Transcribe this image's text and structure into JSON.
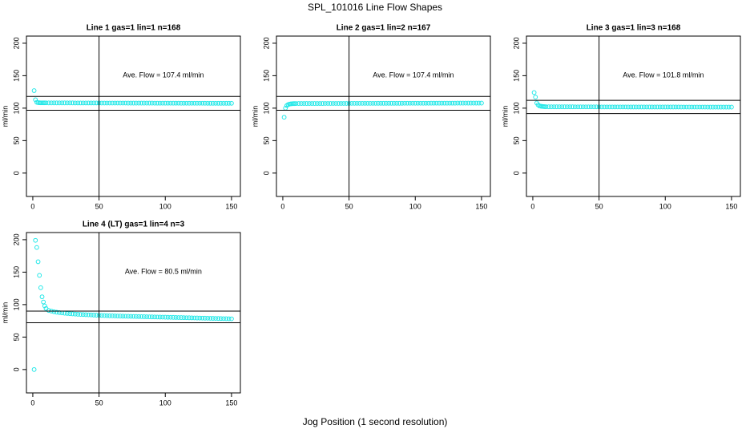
{
  "title": "SPL_101016  Line Flow Shapes",
  "xlabel": "Jog Position (1 second resolution)",
  "chart_data": [
    {
      "type": "scatter",
      "title": "Line 1 gas=1 lin=1 n=168",
      "ylabel": "ml/min",
      "annotation": "Ave. Flow =  107.4  ml/min",
      "color": "#22e8e8",
      "xlim": [
        -4.8,
        156.7
      ],
      "ylim": [
        -36,
        211
      ],
      "xticks": [
        0,
        50,
        100,
        150
      ],
      "yticks": [
        0,
        50,
        100,
        150,
        200
      ],
      "hlines": [
        118.1,
        96.7
      ],
      "vline": 50,
      "x": [
        1,
        2,
        3,
        4,
        5,
        6,
        7,
        8,
        9,
        10,
        12,
        14,
        16,
        18,
        20,
        22,
        24,
        26,
        28,
        30,
        32,
        34,
        36,
        38,
        40,
        42,
        44,
        46,
        48,
        50,
        52,
        54,
        56,
        58,
        60,
        62,
        64,
        66,
        68,
        70,
        72,
        74,
        76,
        78,
        80,
        82,
        84,
        86,
        88,
        90,
        92,
        94,
        96,
        98,
        100,
        102,
        104,
        106,
        108,
        110,
        112,
        114,
        116,
        118,
        120,
        122,
        124,
        126,
        128,
        130,
        132,
        134,
        136,
        138,
        140,
        142,
        144,
        146,
        148,
        150
      ],
      "values": [
        127,
        113,
        109,
        108.5,
        108.3,
        108.2,
        108.2,
        108.2,
        108.2,
        108.2,
        108.1,
        108.1,
        108.1,
        108.1,
        108.1,
        108.1,
        108.1,
        108.1,
        108.1,
        108.1,
        108,
        108,
        108,
        108,
        108,
        108,
        108,
        108,
        108,
        108,
        107.9,
        107.9,
        107.9,
        107.9,
        107.9,
        107.9,
        107.9,
        107.9,
        107.9,
        107.9,
        107.8,
        107.8,
        107.8,
        107.8,
        107.8,
        107.8,
        107.8,
        107.8,
        107.8,
        107.8,
        107.7,
        107.7,
        107.7,
        107.7,
        107.7,
        107.7,
        107.7,
        107.7,
        107.7,
        107.7,
        107.6,
        107.6,
        107.6,
        107.6,
        107.6,
        107.6,
        107.6,
        107.6,
        107.6,
        107.6,
        107.5,
        107.5,
        107.5,
        107.5,
        107.5,
        107.5,
        107.5,
        107.5,
        107.5,
        107.5
      ]
    },
    {
      "type": "scatter",
      "title": "Line 2 gas=1 lin=2 n=167",
      "ylabel": "ml/min",
      "annotation": "Ave. Flow =  107.4  ml/min",
      "color": "#22e8e8",
      "xlim": [
        -4.8,
        156.7
      ],
      "ylim": [
        -36,
        211
      ],
      "xticks": [
        0,
        50,
        100,
        150
      ],
      "yticks": [
        0,
        50,
        100,
        150,
        200
      ],
      "hlines": [
        118.1,
        96.7
      ],
      "vline": 50,
      "x": [
        1,
        2,
        3,
        4,
        5,
        6,
        7,
        8,
        9,
        10,
        12,
        14,
        16,
        18,
        20,
        22,
        24,
        26,
        28,
        30,
        32,
        34,
        36,
        38,
        40,
        42,
        44,
        46,
        48,
        50,
        52,
        54,
        56,
        58,
        60,
        62,
        64,
        66,
        68,
        70,
        72,
        74,
        76,
        78,
        80,
        82,
        84,
        86,
        88,
        90,
        92,
        94,
        96,
        98,
        100,
        102,
        104,
        106,
        108,
        110,
        112,
        114,
        116,
        118,
        120,
        122,
        124,
        126,
        128,
        130,
        132,
        134,
        136,
        138,
        140,
        142,
        144,
        146,
        148,
        150
      ],
      "values": [
        86,
        100,
        104,
        105.5,
        106.2,
        106.6,
        106.8,
        107,
        107,
        107.1,
        107.2,
        107.2,
        107.2,
        107.2,
        107.2,
        107.2,
        107.2,
        107.2,
        107.2,
        107.2,
        107.3,
        107.3,
        107.3,
        107.3,
        107.3,
        107.3,
        107.3,
        107.3,
        107.3,
        107.3,
        107.4,
        107.4,
        107.4,
        107.4,
        107.4,
        107.4,
        107.4,
        107.4,
        107.4,
        107.4,
        107.5,
        107.5,
        107.5,
        107.5,
        107.5,
        107.5,
        107.5,
        107.5,
        107.5,
        107.5,
        107.6,
        107.6,
        107.6,
        107.6,
        107.6,
        107.6,
        107.6,
        107.6,
        107.6,
        107.6,
        107.7,
        107.7,
        107.7,
        107.7,
        107.7,
        107.7,
        107.7,
        107.7,
        107.7,
        107.7,
        107.8,
        107.8,
        107.8,
        107.8,
        107.8,
        107.8,
        107.8,
        107.8,
        107.8,
        107.8
      ]
    },
    {
      "type": "scatter",
      "title": "Line 3 gas=1 lin=3 n=168",
      "ylabel": "ml/min",
      "annotation": "Ave. Flow =  101.8  ml/min",
      "color": "#22e8e8",
      "xlim": [
        -4.8,
        156.7
      ],
      "ylim": [
        -36,
        211
      ],
      "xticks": [
        0,
        50,
        100,
        150
      ],
      "yticks": [
        0,
        50,
        100,
        150,
        200
      ],
      "hlines": [
        112,
        91.6
      ],
      "vline": 50,
      "x": [
        1,
        2,
        3,
        4,
        5,
        6,
        7,
        8,
        9,
        10,
        12,
        14,
        16,
        18,
        20,
        22,
        24,
        26,
        28,
        30,
        32,
        34,
        36,
        38,
        40,
        42,
        44,
        46,
        48,
        50,
        52,
        54,
        56,
        58,
        60,
        62,
        64,
        66,
        68,
        70,
        72,
        74,
        76,
        78,
        80,
        82,
        84,
        86,
        88,
        90,
        92,
        94,
        96,
        98,
        100,
        102,
        104,
        106,
        108,
        110,
        112,
        114,
        116,
        118,
        120,
        122,
        124,
        126,
        128,
        130,
        132,
        134,
        136,
        138,
        140,
        142,
        144,
        146,
        148,
        150
      ],
      "values": [
        124,
        117,
        108,
        105,
        103.5,
        103,
        102.7,
        102.5,
        102.3,
        102.2,
        102.1,
        102.1,
        102.1,
        102.1,
        102.1,
        102.1,
        102.1,
        102.1,
        102.1,
        102.1,
        102,
        102,
        102,
        102,
        102,
        102,
        102,
        102,
        102,
        102,
        101.9,
        101.9,
        101.9,
        101.9,
        101.9,
        101.9,
        101.9,
        101.9,
        101.9,
        101.9,
        101.8,
        101.8,
        101.8,
        101.8,
        101.8,
        101.8,
        101.8,
        101.8,
        101.8,
        101.8,
        101.8,
        101.8,
        101.8,
        101.8,
        101.8,
        101.8,
        101.8,
        101.8,
        101.8,
        101.8,
        101.7,
        101.7,
        101.7,
        101.7,
        101.7,
        101.7,
        101.7,
        101.7,
        101.7,
        101.7,
        101.6,
        101.6,
        101.6,
        101.6,
        101.6,
        101.6,
        101.6,
        101.6,
        101.6,
        101.6
      ]
    },
    {
      "type": "scatter",
      "title": "Line 4 (LT) gas=1 lin=4 n=3",
      "ylabel": "ml/min",
      "annotation": "Ave. Flow =  80.5  ml/min",
      "color": "#22e8e8",
      "xlim": [
        -4.8,
        156.7
      ],
      "ylim": [
        -36,
        211
      ],
      "xticks": [
        0,
        50,
        100,
        150
      ],
      "yticks": [
        0,
        50,
        100,
        150,
        200
      ],
      "hlines": [
        90,
        72
      ],
      "vline": 50,
      "x": [
        1,
        2,
        3,
        4,
        5,
        6,
        7,
        8,
        9,
        10,
        12,
        14,
        16,
        18,
        20,
        22,
        24,
        26,
        28,
        30,
        32,
        34,
        36,
        38,
        40,
        42,
        44,
        46,
        48,
        50,
        52,
        54,
        56,
        58,
        60,
        62,
        64,
        66,
        68,
        70,
        72,
        74,
        76,
        78,
        80,
        82,
        84,
        86,
        88,
        90,
        92,
        94,
        96,
        98,
        100,
        102,
        104,
        106,
        108,
        110,
        112,
        114,
        116,
        118,
        120,
        122,
        124,
        126,
        128,
        130,
        132,
        134,
        136,
        138,
        140,
        142,
        144,
        146,
        148,
        150
      ],
      "values": [
        0,
        199,
        188,
        166,
        145,
        126,
        112,
        104,
        98,
        94,
        91,
        90,
        89,
        88.3,
        87.7,
        87.2,
        86.8,
        86.4,
        86,
        85.7,
        85.4,
        85.1,
        84.9,
        84.7,
        84.5,
        84.3,
        84.1,
        83.9,
        83.7,
        83.5,
        83.3,
        83.1,
        83,
        82.8,
        82.7,
        82.6,
        82.4,
        82.3,
        82.2,
        82.1,
        82,
        81.9,
        81.8,
        81.7,
        81.6,
        81.5,
        81.4,
        81.3,
        81.2,
        81.1,
        81,
        80.9,
        80.8,
        80.7,
        80.6,
        80.5,
        80.4,
        80.3,
        80.2,
        80.1,
        80,
        79.9,
        79.8,
        79.7,
        79.6,
        79.5,
        79.4,
        79.3,
        79.2,
        79.1,
        79,
        78.9,
        78.8,
        78.7,
        78.6,
        78.5,
        78.4,
        78.3,
        78.2,
        78.1
      ]
    }
  ]
}
